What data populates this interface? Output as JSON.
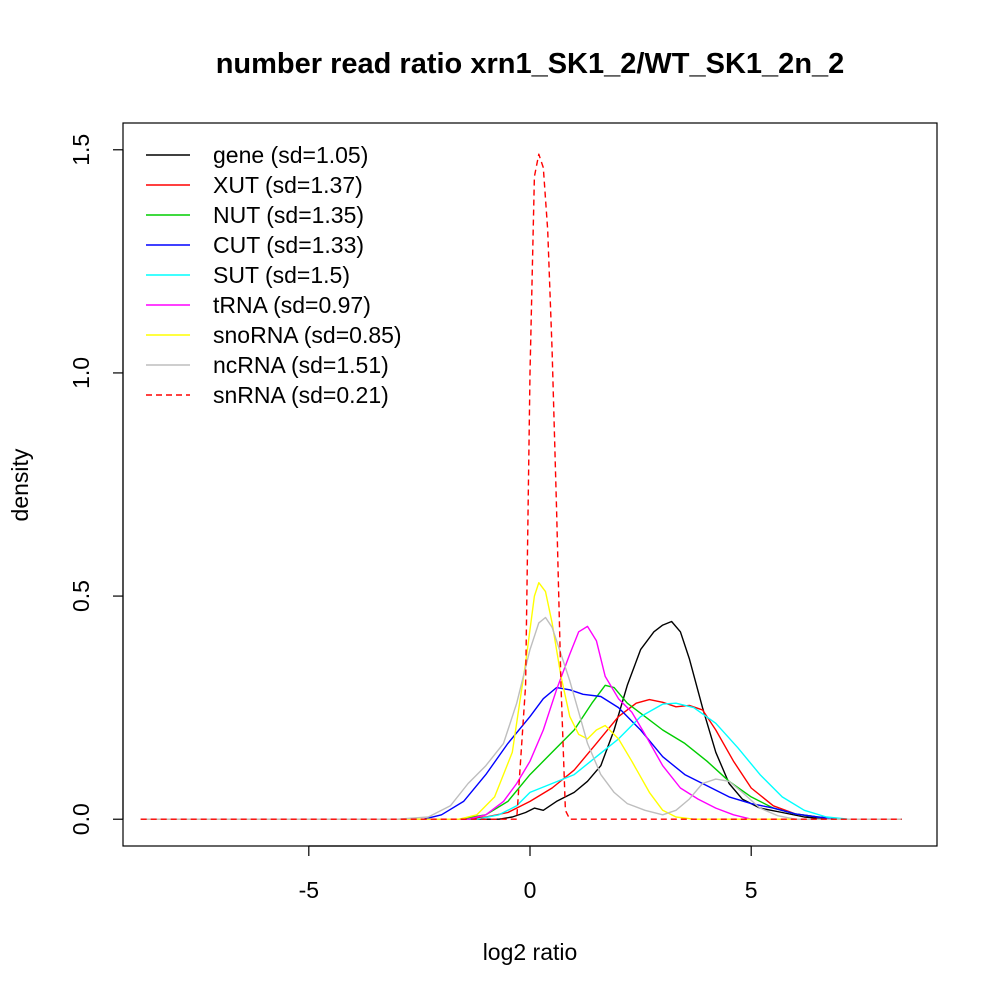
{
  "chart_data": {
    "type": "line",
    "title": "number read ratio xrn1_SK1_2/WT_SK1_2n_2",
    "xlabel": "log2 ratio",
    "ylabel": "density",
    "xlim": [
      -9.2,
      9.2
    ],
    "ylim": [
      -0.06,
      1.56
    ],
    "x_ticks": [
      -5,
      0,
      5
    ],
    "x_tick_labels": [
      "-5",
      "0",
      "5"
    ],
    "y_ticks": [
      0.0,
      0.5,
      1.0,
      1.5
    ],
    "y_tick_labels": [
      "0.0",
      "0.5",
      "1.0",
      "1.5"
    ],
    "grid": false,
    "legend_position": "top-left",
    "x_range_drawn": [
      -8.8,
      8.4
    ],
    "series": [
      {
        "name": "gene (sd=1.05)",
        "color": "#000000",
        "dash": "solid",
        "points": [
          [
            -8.8,
            0
          ],
          [
            -0.7,
            0
          ],
          [
            -0.4,
            0.005
          ],
          [
            -0.1,
            0.015
          ],
          [
            0.1,
            0.025
          ],
          [
            0.3,
            0.02
          ],
          [
            0.6,
            0.04
          ],
          [
            1.0,
            0.06
          ],
          [
            1.3,
            0.085
          ],
          [
            1.6,
            0.12
          ],
          [
            1.9,
            0.2
          ],
          [
            2.2,
            0.3
          ],
          [
            2.5,
            0.38
          ],
          [
            2.8,
            0.42
          ],
          [
            3.0,
            0.435
          ],
          [
            3.2,
            0.443
          ],
          [
            3.4,
            0.42
          ],
          [
            3.6,
            0.36
          ],
          [
            3.9,
            0.25
          ],
          [
            4.2,
            0.15
          ],
          [
            4.5,
            0.08
          ],
          [
            4.8,
            0.045
          ],
          [
            5.2,
            0.025
          ],
          [
            5.7,
            0.015
          ],
          [
            6.2,
            0.005
          ],
          [
            6.8,
            0
          ],
          [
            8.4,
            0
          ]
        ]
      },
      {
        "name": "XUT (sd=1.37)",
        "color": "#ff0000",
        "dash": "solid",
        "points": [
          [
            -8.8,
            0
          ],
          [
            -1.5,
            0
          ],
          [
            -1.0,
            0.005
          ],
          [
            -0.5,
            0.015
          ],
          [
            0,
            0.04
          ],
          [
            0.5,
            0.07
          ],
          [
            1.0,
            0.11
          ],
          [
            1.5,
            0.17
          ],
          [
            2.0,
            0.23
          ],
          [
            2.4,
            0.26
          ],
          [
            2.7,
            0.268
          ],
          [
            3.0,
            0.262
          ],
          [
            3.3,
            0.252
          ],
          [
            3.6,
            0.255
          ],
          [
            3.9,
            0.245
          ],
          [
            4.2,
            0.2
          ],
          [
            4.6,
            0.13
          ],
          [
            5.0,
            0.07
          ],
          [
            5.5,
            0.03
          ],
          [
            6.0,
            0.012
          ],
          [
            6.5,
            0.005
          ],
          [
            7.0,
            0
          ],
          [
            8.4,
            0
          ]
        ]
      },
      {
        "name": "NUT (sd=1.35)",
        "color": "#00cd00",
        "dash": "solid",
        "points": [
          [
            -8.8,
            0
          ],
          [
            -1.6,
            0
          ],
          [
            -1.0,
            0.01
          ],
          [
            -0.5,
            0.04
          ],
          [
            0,
            0.1
          ],
          [
            0.5,
            0.15
          ],
          [
            1.0,
            0.2
          ],
          [
            1.4,
            0.26
          ],
          [
            1.7,
            0.3
          ],
          [
            1.9,
            0.295
          ],
          [
            2.2,
            0.26
          ],
          [
            2.6,
            0.23
          ],
          [
            3.0,
            0.2
          ],
          [
            3.5,
            0.17
          ],
          [
            4.0,
            0.13
          ],
          [
            4.5,
            0.085
          ],
          [
            5.0,
            0.05
          ],
          [
            5.5,
            0.025
          ],
          [
            6.0,
            0.012
          ],
          [
            6.5,
            0.005
          ],
          [
            7.0,
            0
          ],
          [
            8.4,
            0
          ]
        ]
      },
      {
        "name": "CUT (sd=1.33)",
        "color": "#0000ff",
        "dash": "solid",
        "points": [
          [
            -8.8,
            0
          ],
          [
            -2.4,
            0
          ],
          [
            -2.0,
            0.01
          ],
          [
            -1.5,
            0.04
          ],
          [
            -1.0,
            0.1
          ],
          [
            -0.5,
            0.17
          ],
          [
            0,
            0.23
          ],
          [
            0.3,
            0.27
          ],
          [
            0.6,
            0.295
          ],
          [
            0.9,
            0.29
          ],
          [
            1.2,
            0.28
          ],
          [
            1.6,
            0.275
          ],
          [
            2.0,
            0.25
          ],
          [
            2.5,
            0.2
          ],
          [
            3.0,
            0.14
          ],
          [
            3.5,
            0.1
          ],
          [
            4.0,
            0.075
          ],
          [
            4.5,
            0.05
          ],
          [
            5.0,
            0.035
          ],
          [
            5.5,
            0.025
          ],
          [
            6.0,
            0.012
          ],
          [
            6.5,
            0.005
          ],
          [
            7.0,
            0
          ],
          [
            8.4,
            0
          ]
        ]
      },
      {
        "name": "SUT (sd=1.5)",
        "color": "#00ffff",
        "dash": "solid",
        "points": [
          [
            -8.8,
            0
          ],
          [
            -1.2,
            0
          ],
          [
            -0.7,
            0.01
          ],
          [
            -0.3,
            0.03
          ],
          [
            0,
            0.06
          ],
          [
            0.5,
            0.08
          ],
          [
            1.0,
            0.1
          ],
          [
            1.5,
            0.14
          ],
          [
            2.0,
            0.18
          ],
          [
            2.5,
            0.23
          ],
          [
            3.0,
            0.258
          ],
          [
            3.3,
            0.26
          ],
          [
            3.7,
            0.25
          ],
          [
            4.2,
            0.215
          ],
          [
            4.7,
            0.16
          ],
          [
            5.2,
            0.1
          ],
          [
            5.7,
            0.05
          ],
          [
            6.2,
            0.02
          ],
          [
            6.7,
            0.005
          ],
          [
            7.2,
            0
          ],
          [
            8.4,
            0
          ]
        ]
      },
      {
        "name": "tRNA (sd=0.97)",
        "color": "#ff00ff",
        "dash": "solid",
        "points": [
          [
            -8.8,
            0
          ],
          [
            -1.4,
            0
          ],
          [
            -1.0,
            0.01
          ],
          [
            -0.6,
            0.04
          ],
          [
            -0.3,
            0.08
          ],
          [
            0,
            0.13
          ],
          [
            0.3,
            0.2
          ],
          [
            0.6,
            0.29
          ],
          [
            0.9,
            0.37
          ],
          [
            1.1,
            0.42
          ],
          [
            1.3,
            0.432
          ],
          [
            1.5,
            0.4
          ],
          [
            1.7,
            0.32
          ],
          [
            2.0,
            0.27
          ],
          [
            2.3,
            0.24
          ],
          [
            2.6,
            0.19
          ],
          [
            3.0,
            0.12
          ],
          [
            3.4,
            0.07
          ],
          [
            3.8,
            0.045
          ],
          [
            4.2,
            0.025
          ],
          [
            4.6,
            0.01
          ],
          [
            5.0,
            0
          ],
          [
            8.4,
            0
          ]
        ]
      },
      {
        "name": "snoRNA (sd=0.85)",
        "color": "#ffff00",
        "dash": "solid",
        "points": [
          [
            -8.8,
            0
          ],
          [
            -1.6,
            0
          ],
          [
            -1.2,
            0.01
          ],
          [
            -0.8,
            0.05
          ],
          [
            -0.4,
            0.15
          ],
          [
            -0.1,
            0.35
          ],
          [
            0.1,
            0.5
          ],
          [
            0.2,
            0.53
          ],
          [
            0.35,
            0.51
          ],
          [
            0.5,
            0.44
          ],
          [
            0.7,
            0.32
          ],
          [
            0.9,
            0.23
          ],
          [
            1.1,
            0.19
          ],
          [
            1.3,
            0.18
          ],
          [
            1.5,
            0.2
          ],
          [
            1.7,
            0.21
          ],
          [
            2.0,
            0.18
          ],
          [
            2.3,
            0.13
          ],
          [
            2.7,
            0.06
          ],
          [
            3.0,
            0.02
          ],
          [
            3.3,
            0.005
          ],
          [
            3.7,
            0
          ],
          [
            8.4,
            0
          ]
        ]
      },
      {
        "name": "ncRNA (sd=1.51)",
        "color": "#bebebe",
        "dash": "solid",
        "points": [
          [
            -8.8,
            0
          ],
          [
            -3.0,
            0
          ],
          [
            -2.3,
            0.005
          ],
          [
            -1.8,
            0.03
          ],
          [
            -1.4,
            0.08
          ],
          [
            -1.0,
            0.12
          ],
          [
            -0.6,
            0.17
          ],
          [
            -0.3,
            0.26
          ],
          [
            0,
            0.38
          ],
          [
            0.2,
            0.44
          ],
          [
            0.35,
            0.452
          ],
          [
            0.5,
            0.43
          ],
          [
            0.7,
            0.37
          ],
          [
            0.9,
            0.31
          ],
          [
            1.1,
            0.24
          ],
          [
            1.3,
            0.17
          ],
          [
            1.6,
            0.1
          ],
          [
            1.9,
            0.06
          ],
          [
            2.2,
            0.035
          ],
          [
            2.6,
            0.02
          ],
          [
            3.0,
            0.01
          ],
          [
            3.3,
            0.02
          ],
          [
            3.6,
            0.045
          ],
          [
            3.9,
            0.08
          ],
          [
            4.2,
            0.09
          ],
          [
            4.5,
            0.085
          ],
          [
            4.8,
            0.06
          ],
          [
            5.2,
            0.025
          ],
          [
            5.6,
            0.008
          ],
          [
            6.0,
            0
          ],
          [
            8.4,
            0
          ]
        ]
      },
      {
        "name": "snRNA (sd=0.21)",
        "color": "#ff0000",
        "dash": "dashed",
        "points": [
          [
            -8.8,
            0
          ],
          [
            -0.3,
            0
          ],
          [
            -0.1,
            0.3
          ],
          [
            0,
            1.0
          ],
          [
            0.1,
            1.44
          ],
          [
            0.2,
            1.49
          ],
          [
            0.3,
            1.46
          ],
          [
            0.4,
            1.32
          ],
          [
            0.5,
            1.05
          ],
          [
            0.6,
            0.7
          ],
          [
            0.7,
            0.3
          ],
          [
            0.8,
            0.02
          ],
          [
            0.9,
            0
          ],
          [
            8.4,
            0
          ]
        ]
      }
    ]
  }
}
